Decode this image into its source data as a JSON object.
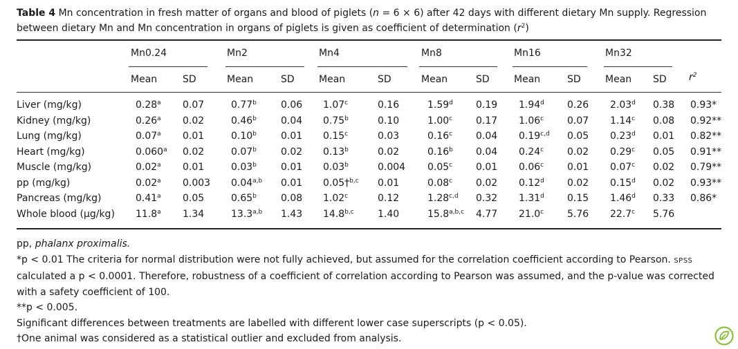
{
  "caption": {
    "label": "Table 4",
    "text_before_n": " Mn concentration in fresh matter of organs and blood of piglets (",
    "n": "n",
    "text_after_n": " = 6 × 6) after 42 days with different dietary Mn supply. Regression between dietary Mn and Mn concentration in organs of piglets is given as coefficient of determination (",
    "r": "r",
    "r_sup": "2",
    "close": ")"
  },
  "groups": [
    "Mn0.24",
    "Mn2",
    "Mn4",
    "Mn8",
    "Mn16",
    "Mn32"
  ],
  "subheaders": {
    "mean": "Mean",
    "sd": "SD",
    "r2": "r",
    "r2_sup": "2"
  },
  "rows": [
    {
      "label": "Liver (mg/kg)",
      "cells": [
        [
          "0.28",
          "a"
        ],
        [
          "0.07",
          ""
        ],
        [
          "0.77",
          "b"
        ],
        [
          "0.06",
          ""
        ],
        [
          "1.07",
          "c"
        ],
        [
          "0.16",
          ""
        ],
        [
          "1.59",
          "d"
        ],
        [
          "0.19",
          ""
        ],
        [
          "1.94",
          "d"
        ],
        [
          "0.26",
          ""
        ],
        [
          "2.03",
          "d"
        ],
        [
          "0.38",
          ""
        ]
      ],
      "r2": "0.93*"
    },
    {
      "label": "Kidney (mg/kg)",
      "cells": [
        [
          "0.26",
          "a"
        ],
        [
          "0.02",
          ""
        ],
        [
          "0.46",
          "b"
        ],
        [
          "0.04",
          ""
        ],
        [
          "0.75",
          "b"
        ],
        [
          "0.10",
          ""
        ],
        [
          "1.00",
          "c"
        ],
        [
          "0.17",
          ""
        ],
        [
          "1.06",
          "c"
        ],
        [
          "0.07",
          ""
        ],
        [
          "1.14",
          "c"
        ],
        [
          "0.08",
          ""
        ]
      ],
      "r2": "0.92**"
    },
    {
      "label": "Lung (mg/kg)",
      "cells": [
        [
          "0.07",
          "a"
        ],
        [
          "0.01",
          ""
        ],
        [
          "0.10",
          "b"
        ],
        [
          "0.01",
          ""
        ],
        [
          "0.15",
          "c"
        ],
        [
          "0.03",
          ""
        ],
        [
          "0.16",
          "c"
        ],
        [
          "0.04",
          ""
        ],
        [
          "0.19",
          "c,d"
        ],
        [
          "0.05",
          ""
        ],
        [
          "0.23",
          "d"
        ],
        [
          "0.01",
          ""
        ]
      ],
      "r2": "0.82**"
    },
    {
      "label": "Heart (mg/kg)",
      "cells": [
        [
          "0.060",
          "a"
        ],
        [
          "0.02",
          ""
        ],
        [
          "0.07",
          "b"
        ],
        [
          "0.02",
          ""
        ],
        [
          "0.13",
          "b"
        ],
        [
          "0.02",
          ""
        ],
        [
          "0.16",
          "b"
        ],
        [
          "0.04",
          ""
        ],
        [
          "0.24",
          "c"
        ],
        [
          "0.02",
          ""
        ],
        [
          "0.29",
          "c"
        ],
        [
          "0.05",
          ""
        ]
      ],
      "r2": "0.91**"
    },
    {
      "label": "Muscle (mg/kg)",
      "cells": [
        [
          "0.02",
          "a"
        ],
        [
          "0.01",
          ""
        ],
        [
          "0.03",
          "b"
        ],
        [
          "0.01",
          ""
        ],
        [
          "0.03",
          "b"
        ],
        [
          "0.004",
          ""
        ],
        [
          "0.05",
          "c"
        ],
        [
          "0.01",
          ""
        ],
        [
          "0.06",
          "c"
        ],
        [
          "0.01",
          ""
        ],
        [
          "0.07",
          "c"
        ],
        [
          "0.02",
          ""
        ]
      ],
      "r2": "0.79**"
    },
    {
      "label": "pp (mg/kg)",
      "cells": [
        [
          "0.02",
          "a"
        ],
        [
          "0.003",
          ""
        ],
        [
          "0.04",
          "a,b"
        ],
        [
          "0.01",
          ""
        ],
        [
          "0.05†",
          "b,c"
        ],
        [
          "0.01",
          ""
        ],
        [
          "0.08",
          "c"
        ],
        [
          "0.02",
          ""
        ],
        [
          "0.12",
          "d"
        ],
        [
          "0.02",
          ""
        ],
        [
          "0.15",
          "d"
        ],
        [
          "0.02",
          ""
        ]
      ],
      "r2": "0.93**"
    },
    {
      "label": "Pancreas (mg/kg)",
      "cells": [
        [
          "0.41",
          "a"
        ],
        [
          "0.05",
          ""
        ],
        [
          "0.65",
          "b"
        ],
        [
          "0.08",
          ""
        ],
        [
          "1.02",
          "c"
        ],
        [
          "0.12",
          ""
        ],
        [
          "1.28",
          "c,d"
        ],
        [
          "0.32",
          ""
        ],
        [
          "1.31",
          "d"
        ],
        [
          "0.15",
          ""
        ],
        [
          "1.46",
          "d"
        ],
        [
          "0.33",
          ""
        ]
      ],
      "r2": "0.86*"
    },
    {
      "label": "Whole blood (μg/kg)",
      "cells": [
        [
          "11.8",
          "a"
        ],
        [
          "1.34",
          ""
        ],
        [
          "13.3",
          "a,b"
        ],
        [
          "1.43",
          ""
        ],
        [
          "14.8",
          "b,c"
        ],
        [
          "1.40",
          ""
        ],
        [
          "15.8",
          "a,b,c"
        ],
        [
          "4.77",
          ""
        ],
        [
          "21.0",
          "c"
        ],
        [
          "5.76",
          ""
        ],
        [
          "22.7",
          "c"
        ],
        [
          "5.76",
          ""
        ]
      ],
      "r2": ""
    }
  ],
  "notes": {
    "pp_abbr": "pp, ",
    "pp_full": "phalanx proximalis.",
    "star1_before": "*p < 0.01 The criteria for normal distribution were not fully achieved, but assumed for the correlation coefficient according to Pearson. ",
    "star1_spss": "SPSS",
    "star1_after": " calculated a p < 0.0001. Therefore, robustness of a coefficient of correlation according to Pearson was assumed, and the p-value was corrected with a safety coefficient of 100.",
    "star2": "**p < 0.005.",
    "signif": "Significant differences between treatments are labelled with different lower case superscripts (p < 0.05).",
    "dagger": "†One animal was considered as a statistical outlier and excluded from analysis."
  },
  "logo_icon": "open-access-leaf-icon",
  "accent_color": "#8bbf3f"
}
